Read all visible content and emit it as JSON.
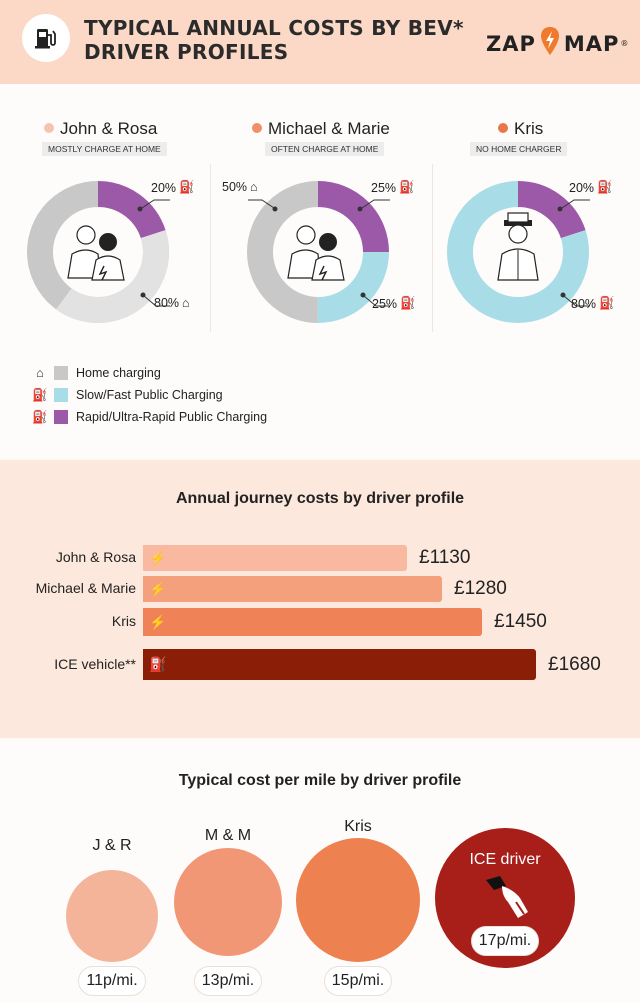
{
  "header": {
    "title_line1": "TYPICAL ANNUAL COSTS BY BEV*",
    "title_line2": "DRIVER PROFILES",
    "logo_left": "ZAP",
    "logo_right": "MAP",
    "logo_mark": "®",
    "badge_icon": "ev-charger-icon"
  },
  "profiles": [
    {
      "name": "John & Rosa",
      "dot_color": "#f6c4ae",
      "tag": "MOSTLY CHARGE AT HOME",
      "slices": [
        {
          "type": "rapid",
          "pct": "20%"
        },
        {
          "type": "home",
          "pct": "80%"
        }
      ]
    },
    {
      "name": "Michael & Marie",
      "dot_color": "#f0906a",
      "tag": "OFTEN CHARGE AT HOME",
      "slices": [
        {
          "type": "rapid",
          "pct": "25%"
        },
        {
          "type": "slow",
          "pct": "25%"
        },
        {
          "type": "home",
          "pct": "50%"
        }
      ]
    },
    {
      "name": "Kris",
      "dot_color": "#e9774a",
      "tag": "NO HOME CHARGER",
      "slices": [
        {
          "type": "rapid",
          "pct": "20%"
        },
        {
          "type": "slow",
          "pct": "80%"
        }
      ]
    }
  ],
  "legend": [
    {
      "label": "Home charging",
      "color": "#c8c8c8",
      "icon": "home-icon"
    },
    {
      "label": "Slow/Fast Public Charging",
      "color": "#a8dde8",
      "icon": "charger-icon"
    },
    {
      "label": "Rapid/Ultra-Rapid Public Charging",
      "color": "#9b59a8",
      "icon": "rapid-charger-icon"
    }
  ],
  "colors": {
    "home": "#c8c8c8",
    "home_light": "#e2e2e2",
    "slow": "#a8dde8",
    "rapid": "#9b59a8"
  },
  "annual": {
    "title": "Annual journey costs by driver profile"
  },
  "permile": {
    "title": "Typical cost per mile by driver profile"
  },
  "chart_data": [
    {
      "type": "pie",
      "title": "John & Rosa",
      "categories": [
        "Rapid/Ultra-Rapid Public Charging",
        "Home charging"
      ],
      "values": [
        20,
        80
      ]
    },
    {
      "type": "pie",
      "title": "Michael & Marie",
      "categories": [
        "Rapid/Ultra-Rapid Public Charging",
        "Slow/Fast Public Charging",
        "Home charging"
      ],
      "values": [
        25,
        25,
        50
      ]
    },
    {
      "type": "pie",
      "title": "Kris",
      "categories": [
        "Rapid/Ultra-Rapid Public Charging",
        "Slow/Fast Public Charging"
      ],
      "values": [
        20,
        80
      ]
    },
    {
      "type": "bar",
      "title": "Annual journey costs by driver profile",
      "categories": [
        "John & Rosa",
        "Michael & Marie",
        "Kris",
        "ICE vehicle**"
      ],
      "values": [
        1130,
        1280,
        1450,
        1680
      ],
      "value_labels": [
        "£1130",
        "£1280",
        "£1450",
        "£1680"
      ],
      "colors": [
        "#f8b9a0",
        "#f5a07c",
        "#ef8256",
        "#8b1e06"
      ],
      "icons": [
        "bolt-icon",
        "bolt-icon",
        "bolt-icon",
        "fuel-can-icon"
      ]
    },
    {
      "type": "bar",
      "title": "Typical cost per mile by driver profile",
      "categories": [
        "J & R",
        "M & M",
        "Kris",
        "ICE driver"
      ],
      "values": [
        11,
        13,
        15,
        17
      ],
      "value_labels": [
        "11p/mi.",
        "13p/mi.",
        "15p/mi.",
        "17p/mi."
      ],
      "colors": [
        "#f4b49a",
        "#f29775",
        "#ed8150",
        "#a81f1a"
      ]
    }
  ]
}
